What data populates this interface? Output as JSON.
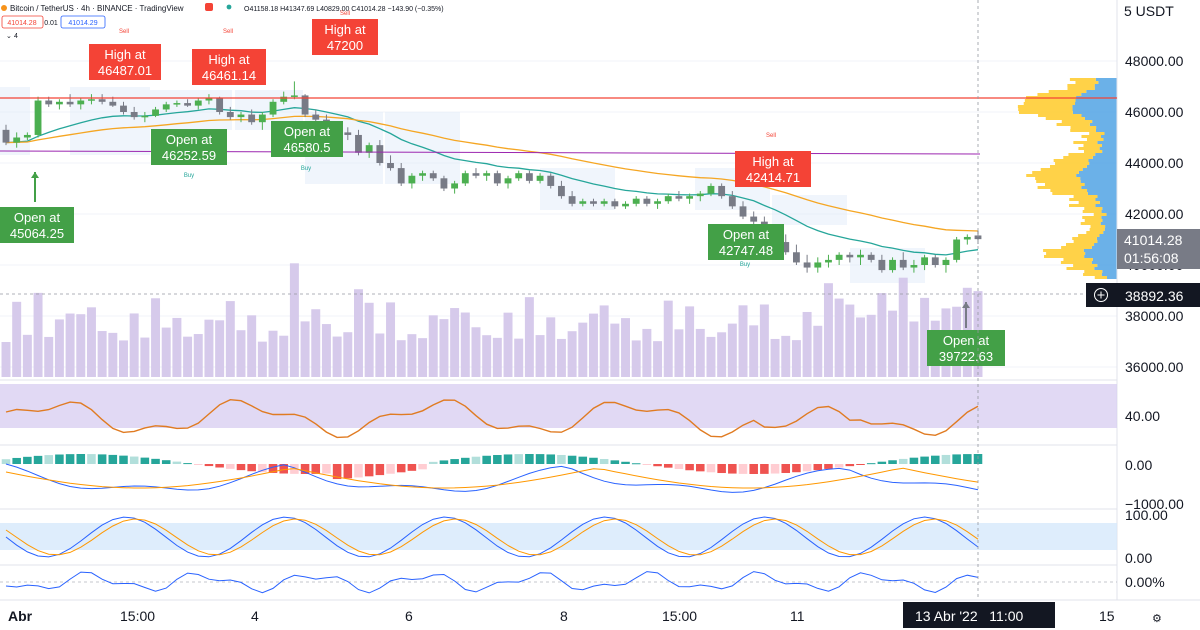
{
  "header": {
    "symbol_line": "Bitcoin / TetherUS · 4h · BINANCE · TradingView",
    "ohlc_line": "O41158.18 H41347.69 L40829.00 C41014.28 −143.90 (−0.35%)",
    "bid": "41014.28",
    "spread": "0.01",
    "ask": "41014.29",
    "collapse_label": "4",
    "currency_label": "5 USDT",
    "icons": [
      "sell-marker-icon",
      "status-dot-icon",
      "collapse-arrow-icon"
    ]
  },
  "price_axis": {
    "ticks": [
      "48000.00",
      "46000.00",
      "44000.00",
      "42000.00",
      "40000.00",
      "38000.00",
      "36000.00"
    ],
    "last_price": "41014.28",
    "countdown": "01:56:08",
    "crosshair_price": "38892.36"
  },
  "indicator_axes": {
    "rsi": "40.00",
    "macd_top": "0.00",
    "macd_bottom": "−1000.00",
    "stoch_top": "100.00",
    "stoch_bottom": "0.00",
    "pct": "0.00%"
  },
  "time_axis": {
    "labels": [
      "Abr",
      "15:00",
      "4",
      "6",
      "8",
      "15:00",
      "11",
      "15"
    ],
    "crosshair_label": "13 Abr '22   11:00"
  },
  "signals": {
    "high": [
      {
        "title": "High at",
        "value": "46487.01"
      },
      {
        "title": "High at",
        "value": "46461.14"
      },
      {
        "title": "High at",
        "value": "47200"
      },
      {
        "title": "High at",
        "value": "42414.71"
      }
    ],
    "open": [
      {
        "title": "Open at",
        "value": "45064.25"
      },
      {
        "title": "Open at",
        "value": "46252.59"
      },
      {
        "title": "Open at",
        "value": "46580.5"
      },
      {
        "title": "Open at",
        "value": "42747.48"
      },
      {
        "title": "Open at",
        "value": "39722.63"
      }
    ],
    "buy_label": "Buy",
    "sell_label": "Sell"
  },
  "colors": {
    "up": "#4caf50",
    "down": "#787b86",
    "signal_red": "#f44336",
    "signal_green": "#43a047",
    "ema_fast": "#26a69a",
    "ema_slow": "#f5a623",
    "volume": "#d1c4e9",
    "rsi_band": "#d7ccf0",
    "vp_blue": "#5ba8e5",
    "vp_yellow": "#ffca28"
  },
  "chart_data": {
    "type": "candlestick",
    "symbol": "Bitcoin / TetherUS",
    "interval": "4h",
    "ylim": [
      35600,
      49000
    ],
    "candles": [
      [
        45300,
        45500,
        44700,
        44800
      ],
      [
        44800,
        45200,
        44600,
        45000
      ],
      [
        45000,
        45200,
        44900,
        45100
      ],
      [
        45100,
        46600,
        45000,
        46450
      ],
      [
        46450,
        46600,
        46200,
        46300
      ],
      [
        46300,
        46500,
        46100,
        46400
      ],
      [
        46400,
        46700,
        46200,
        46300
      ],
      [
        46300,
        46550,
        46100,
        46450
      ],
      [
        46450,
        46700,
        46300,
        46500
      ],
      [
        46500,
        46700,
        46300,
        46400
      ],
      [
        46400,
        46600,
        46200,
        46250
      ],
      [
        46250,
        46400,
        45900,
        46000
      ],
      [
        46000,
        46200,
        45700,
        45800
      ],
      [
        45800,
        46000,
        45600,
        45850
      ],
      [
        45850,
        46200,
        45800,
        46100
      ],
      [
        46100,
        46400,
        46000,
        46300
      ],
      [
        46300,
        46450,
        46200,
        46350
      ],
      [
        46350,
        46500,
        46200,
        46250
      ],
      [
        46250,
        46550,
        46100,
        46450
      ],
      [
        46450,
        46700,
        46300,
        46550
      ],
      [
        46550,
        46600,
        45900,
        46000
      ],
      [
        46000,
        46200,
        45700,
        45800
      ],
      [
        45800,
        46000,
        45600,
        45900
      ],
      [
        45900,
        46100,
        45500,
        45600
      ],
      [
        45600,
        46000,
        45300,
        45900
      ],
      [
        45900,
        46500,
        45800,
        46400
      ],
      [
        46400,
        46800,
        46300,
        46600
      ],
      [
        46600,
        47200,
        46500,
        46650
      ],
      [
        46650,
        46700,
        45800,
        45900
      ],
      [
        45900,
        46100,
        45500,
        45700
      ],
      [
        45700,
        45900,
        45300,
        45400
      ],
      [
        45400,
        45600,
        45000,
        45200
      ],
      [
        45200,
        45400,
        44900,
        45100
      ],
      [
        45100,
        45300,
        44300,
        44400
      ],
      [
        44400,
        44800,
        44200,
        44700
      ],
      [
        44700,
        44900,
        43900,
        44000
      ],
      [
        44000,
        44300,
        43700,
        43800
      ],
      [
        43800,
        44000,
        43100,
        43200
      ],
      [
        43200,
        43600,
        43000,
        43500
      ],
      [
        43500,
        43700,
        43300,
        43600
      ],
      [
        43600,
        43700,
        43300,
        43400
      ],
      [
        43400,
        43500,
        42900,
        43000
      ],
      [
        43000,
        43300,
        42800,
        43200
      ],
      [
        43200,
        43700,
        43100,
        43600
      ],
      [
        43600,
        43800,
        43400,
        43500
      ],
      [
        43500,
        43700,
        43300,
        43600
      ],
      [
        43600,
        43700,
        43100,
        43200
      ],
      [
        43200,
        43500,
        43000,
        43400
      ],
      [
        43400,
        43700,
        43300,
        43600
      ],
      [
        43600,
        43700,
        43200,
        43300
      ],
      [
        43300,
        43600,
        43200,
        43500
      ],
      [
        43500,
        43600,
        43000,
        43100
      ],
      [
        43100,
        43300,
        42600,
        42700
      ],
      [
        42700,
        42900,
        42300,
        42400
      ],
      [
        42400,
        42600,
        42300,
        42500
      ],
      [
        42500,
        42600,
        42300,
        42400
      ],
      [
        42400,
        42600,
        42300,
        42500
      ],
      [
        42500,
        42600,
        42200,
        42300
      ],
      [
        42300,
        42500,
        42200,
        42400
      ],
      [
        42400,
        42700,
        42300,
        42600
      ],
      [
        42600,
        42700,
        42300,
        42400
      ],
      [
        42400,
        42600,
        42200,
        42500
      ],
      [
        42500,
        42800,
        42400,
        42700
      ],
      [
        42700,
        42900,
        42500,
        42600
      ],
      [
        42600,
        42800,
        42400,
        42700
      ],
      [
        42700,
        42900,
        42500,
        42800
      ],
      [
        42800,
        43200,
        42700,
        43100
      ],
      [
        43100,
        43200,
        42600,
        42700
      ],
      [
        42700,
        42900,
        42200,
        42300
      ],
      [
        42300,
        42500,
        41800,
        41900
      ],
      [
        41900,
        42100,
        41600,
        41700
      ],
      [
        41700,
        41900,
        40900,
        41000
      ],
      [
        41000,
        41300,
        40700,
        40900
      ],
      [
        40900,
        41200,
        40400,
        40500
      ],
      [
        40500,
        40800,
        40000,
        40100
      ],
      [
        40100,
        40400,
        39700,
        39900
      ],
      [
        39900,
        40300,
        39700,
        40100
      ],
      [
        40100,
        40400,
        39900,
        40200
      ],
      [
        40200,
        40500,
        40000,
        40400
      ],
      [
        40400,
        40500,
        40100,
        40300
      ],
      [
        40300,
        40600,
        40000,
        40400
      ],
      [
        40400,
        40500,
        40100,
        40200
      ],
      [
        40200,
        40400,
        39700,
        39800
      ],
      [
        39800,
        40300,
        39700,
        40200
      ],
      [
        40200,
        40500,
        39800,
        39900
      ],
      [
        39900,
        40200,
        39700,
        40000
      ],
      [
        40000,
        40400,
        39800,
        40300
      ],
      [
        40300,
        40400,
        39900,
        40000
      ],
      [
        40000,
        40300,
        39700,
        40200
      ],
      [
        40200,
        41100,
        40100,
        41000
      ],
      [
        41000,
        41200,
        40800,
        41100
      ],
      [
        41158.18,
        41347.69,
        40829.0,
        41014.28
      ]
    ]
  }
}
